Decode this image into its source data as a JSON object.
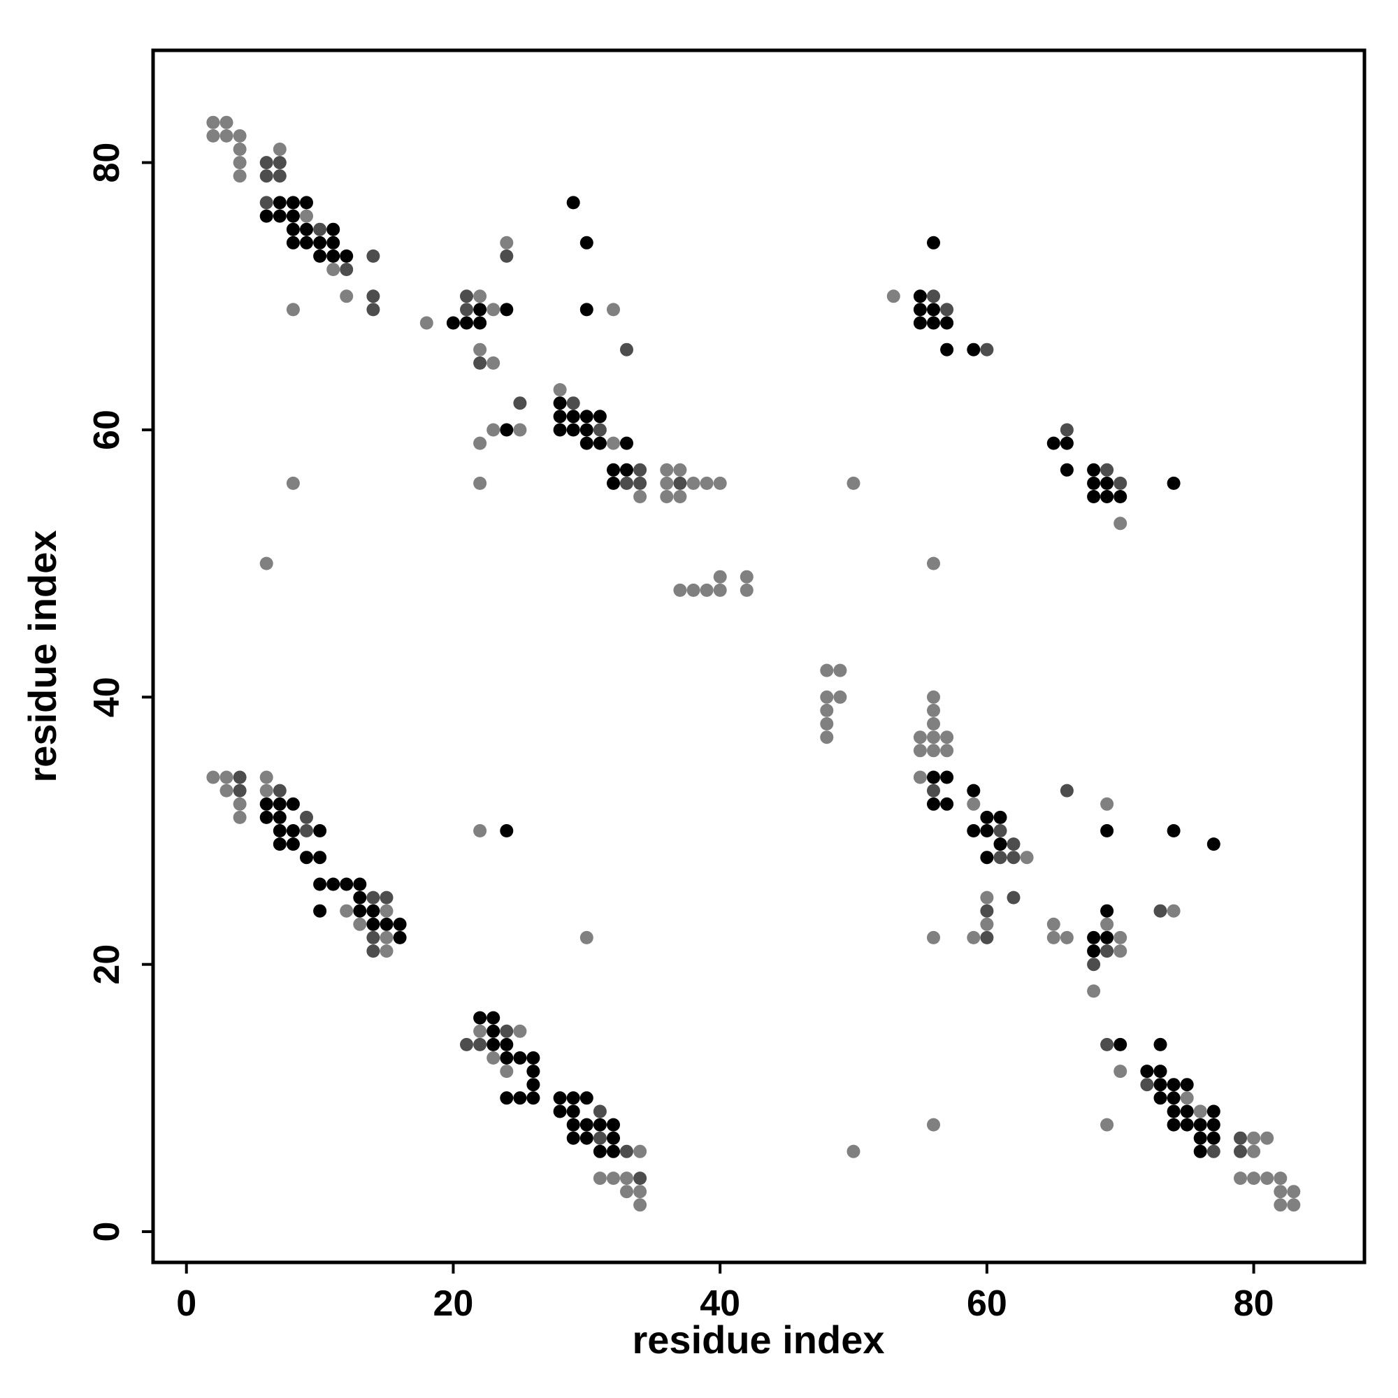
{
  "chart_data": {
    "type": "scatter",
    "title": "",
    "xlabel": "residue index",
    "ylabel": "residue index",
    "xlim": [
      -2.5,
      88.3
    ],
    "ylim": [
      -2.3,
      88.4
    ],
    "xticks": [
      0,
      20,
      40,
      60,
      80
    ],
    "yticks": [
      0,
      20,
      40,
      60,
      80
    ],
    "grid": false,
    "colors": {
      "strong": "#000000",
      "medium": "#4d4d4d",
      "weak": "#808080"
    },
    "series": [
      {
        "level": "strong",
        "points": [
          [
            6,
            76
          ],
          [
            7,
            76
          ],
          [
            8,
            76
          ],
          [
            7,
            77
          ],
          [
            8,
            77
          ],
          [
            9,
            77
          ],
          [
            8,
            75
          ],
          [
            9,
            75
          ],
          [
            8,
            74
          ],
          [
            9,
            74
          ],
          [
            10,
            74
          ],
          [
            11,
            74
          ],
          [
            10,
            73
          ],
          [
            11,
            73
          ],
          [
            12,
            73
          ],
          [
            11,
            75
          ],
          [
            29,
            77
          ],
          [
            30,
            74
          ],
          [
            30,
            69
          ],
          [
            20,
            68
          ],
          [
            21,
            68
          ],
          [
            22,
            68
          ],
          [
            22,
            69
          ],
          [
            24,
            69
          ],
          [
            24,
            60
          ],
          [
            28,
            62
          ],
          [
            28,
            61
          ],
          [
            29,
            61
          ],
          [
            30,
            61
          ],
          [
            31,
            61
          ],
          [
            28,
            60
          ],
          [
            29,
            60
          ],
          [
            30,
            60
          ],
          [
            30,
            59
          ],
          [
            31,
            59
          ],
          [
            33,
            59
          ],
          [
            32,
            57
          ],
          [
            33,
            57
          ],
          [
            32,
            56
          ],
          [
            56,
            74
          ],
          [
            55,
            70
          ],
          [
            55,
            69
          ],
          [
            56,
            69
          ],
          [
            55,
            68
          ],
          [
            56,
            68
          ],
          [
            57,
            68
          ],
          [
            57,
            66
          ],
          [
            59,
            66
          ],
          [
            65,
            59
          ],
          [
            66,
            59
          ],
          [
            66,
            57
          ],
          [
            68,
            57
          ],
          [
            68,
            56
          ],
          [
            69,
            56
          ],
          [
            68,
            55
          ],
          [
            69,
            55
          ],
          [
            70,
            55
          ],
          [
            74,
            56
          ],
          [
            6,
            32
          ],
          [
            7,
            32
          ],
          [
            8,
            32
          ],
          [
            6,
            31
          ],
          [
            7,
            31
          ],
          [
            7,
            30
          ],
          [
            8,
            30
          ],
          [
            10,
            30
          ],
          [
            7,
            29
          ],
          [
            8,
            29
          ],
          [
            9,
            28
          ],
          [
            10,
            28
          ],
          [
            10,
            26
          ],
          [
            11,
            26
          ],
          [
            12,
            26
          ],
          [
            13,
            26
          ],
          [
            13,
            25
          ],
          [
            13,
            24
          ],
          [
            14,
            24
          ],
          [
            10,
            24
          ],
          [
            14,
            23
          ],
          [
            15,
            23
          ],
          [
            16,
            23
          ],
          [
            16,
            22
          ],
          [
            24,
            30
          ],
          [
            22,
            16
          ],
          [
            23,
            16
          ],
          [
            23,
            15
          ],
          [
            23,
            14
          ],
          [
            24,
            14
          ],
          [
            24,
            13
          ],
          [
            25,
            13
          ],
          [
            26,
            13
          ],
          [
            26,
            12
          ],
          [
            26,
            11
          ],
          [
            24,
            10
          ],
          [
            25,
            10
          ],
          [
            26,
            10
          ],
          [
            28,
            10
          ],
          [
            29,
            10
          ],
          [
            30,
            10
          ],
          [
            28,
            9
          ],
          [
            29,
            9
          ],
          [
            29,
            8
          ],
          [
            30,
            8
          ],
          [
            31,
            8
          ],
          [
            32,
            8
          ],
          [
            29,
            7
          ],
          [
            30,
            7
          ],
          [
            32,
            7
          ],
          [
            31,
            6
          ],
          [
            32,
            6
          ],
          [
            56,
            34
          ],
          [
            57,
            34
          ],
          [
            56,
            32
          ],
          [
            57,
            32
          ],
          [
            59,
            33
          ],
          [
            60,
            31
          ],
          [
            61,
            31
          ],
          [
            59,
            30
          ],
          [
            60,
            30
          ],
          [
            61,
            29
          ],
          [
            60,
            28
          ],
          [
            68,
            22
          ],
          [
            69,
            22
          ],
          [
            69,
            24
          ],
          [
            68,
            21
          ],
          [
            69,
            30
          ],
          [
            74,
            30
          ],
          [
            77,
            29
          ],
          [
            70,
            14
          ],
          [
            73,
            14
          ],
          [
            72,
            12
          ],
          [
            73,
            12
          ],
          [
            73,
            11
          ],
          [
            74,
            11
          ],
          [
            75,
            11
          ],
          [
            73,
            10
          ],
          [
            74,
            10
          ],
          [
            74,
            9
          ],
          [
            75,
            9
          ],
          [
            77,
            9
          ],
          [
            74,
            8
          ],
          [
            75,
            8
          ],
          [
            76,
            8
          ],
          [
            77,
            8
          ],
          [
            76,
            7
          ],
          [
            77,
            7
          ],
          [
            76,
            6
          ]
        ]
      },
      {
        "level": "medium",
        "points": [
          [
            6,
            80
          ],
          [
            7,
            80
          ],
          [
            6,
            79
          ],
          [
            7,
            79
          ],
          [
            6,
            77
          ],
          [
            10,
            75
          ],
          [
            12,
            72
          ],
          [
            14,
            73
          ],
          [
            14,
            70
          ],
          [
            14,
            69
          ],
          [
            21,
            70
          ],
          [
            21,
            69
          ],
          [
            22,
            65
          ],
          [
            24,
            73
          ],
          [
            33,
            66
          ],
          [
            25,
            62
          ],
          [
            29,
            62
          ],
          [
            31,
            60
          ],
          [
            34,
            57
          ],
          [
            33,
            56
          ],
          [
            34,
            56
          ],
          [
            37,
            56
          ],
          [
            56,
            70
          ],
          [
            57,
            69
          ],
          [
            60,
            66
          ],
          [
            66,
            60
          ],
          [
            69,
            57
          ],
          [
            70,
            56
          ],
          [
            4,
            34
          ],
          [
            4,
            33
          ],
          [
            7,
            33
          ],
          [
            9,
            31
          ],
          [
            9,
            30
          ],
          [
            15,
            25
          ],
          [
            14,
            25
          ],
          [
            14,
            22
          ],
          [
            14,
            21
          ],
          [
            21,
            14
          ],
          [
            22,
            14
          ],
          [
            24,
            15
          ],
          [
            31,
            9
          ],
          [
            31,
            7
          ],
          [
            33,
            6
          ],
          [
            34,
            4
          ],
          [
            56,
            33
          ],
          [
            61,
            30
          ],
          [
            62,
            29
          ],
          [
            61,
            28
          ],
          [
            62,
            28
          ],
          [
            66,
            33
          ],
          [
            60,
            24
          ],
          [
            62,
            25
          ],
          [
            60,
            22
          ],
          [
            68,
            20
          ],
          [
            69,
            21
          ],
          [
            73,
            24
          ],
          [
            69,
            14
          ],
          [
            72,
            11
          ],
          [
            76,
            9
          ],
          [
            77,
            6
          ],
          [
            79,
            7
          ],
          [
            79,
            6
          ]
        ]
      },
      {
        "level": "weak",
        "points": [
          [
            2,
            83
          ],
          [
            3,
            83
          ],
          [
            2,
            82
          ],
          [
            3,
            82
          ],
          [
            4,
            82
          ],
          [
            4,
            81
          ],
          [
            4,
            80
          ],
          [
            4,
            79
          ],
          [
            7,
            81
          ],
          [
            9,
            76
          ],
          [
            11,
            72
          ],
          [
            12,
            70
          ],
          [
            8,
            69
          ],
          [
            18,
            68
          ],
          [
            22,
            70
          ],
          [
            23,
            69
          ],
          [
            22,
            66
          ],
          [
            23,
            65
          ],
          [
            24,
            74
          ],
          [
            32,
            69
          ],
          [
            28,
            63
          ],
          [
            22,
            59
          ],
          [
            23,
            60
          ],
          [
            25,
            60
          ],
          [
            32,
            59
          ],
          [
            22,
            56
          ],
          [
            8,
            56
          ],
          [
            34,
            55
          ],
          [
            36,
            57
          ],
          [
            37,
            57
          ],
          [
            36,
            56
          ],
          [
            38,
            56
          ],
          [
            39,
            56
          ],
          [
            40,
            56
          ],
          [
            36,
            55
          ],
          [
            37,
            55
          ],
          [
            50,
            56
          ],
          [
            53,
            70
          ],
          [
            70,
            53
          ],
          [
            6,
            50
          ],
          [
            56,
            50
          ],
          [
            37,
            48
          ],
          [
            38,
            48
          ],
          [
            39,
            48
          ],
          [
            40,
            48
          ],
          [
            40,
            49
          ],
          [
            42,
            49
          ],
          [
            42,
            48
          ],
          [
            48,
            42
          ],
          [
            49,
            42
          ],
          [
            48,
            40
          ],
          [
            49,
            40
          ],
          [
            48,
            39
          ],
          [
            48,
            38
          ],
          [
            48,
            37
          ],
          [
            56,
            40
          ],
          [
            56,
            39
          ],
          [
            56,
            38
          ],
          [
            55,
            37
          ],
          [
            56,
            37
          ],
          [
            57,
            37
          ],
          [
            55,
            36
          ],
          [
            56,
            36
          ],
          [
            57,
            36
          ],
          [
            55,
            34
          ],
          [
            59,
            32
          ],
          [
            63,
            28
          ],
          [
            60,
            25
          ],
          [
            60,
            23
          ],
          [
            59,
            22
          ],
          [
            56,
            22
          ],
          [
            2,
            34
          ],
          [
            3,
            34
          ],
          [
            6,
            34
          ],
          [
            3,
            33
          ],
          [
            6,
            33
          ],
          [
            4,
            32
          ],
          [
            4,
            31
          ],
          [
            13,
            23
          ],
          [
            12,
            24
          ],
          [
            15,
            24
          ],
          [
            15,
            22
          ],
          [
            15,
            21
          ],
          [
            22,
            30
          ],
          [
            30,
            22
          ],
          [
            22,
            15
          ],
          [
            25,
            15
          ],
          [
            24,
            12
          ],
          [
            23,
            13
          ],
          [
            31,
            4
          ],
          [
            32,
            4
          ],
          [
            33,
            4
          ],
          [
            33,
            3
          ],
          [
            34,
            3
          ],
          [
            34,
            6
          ],
          [
            34,
            2
          ],
          [
            50,
            6
          ],
          [
            56,
            8
          ],
          [
            65,
            23
          ],
          [
            65,
            22
          ],
          [
            66,
            22
          ],
          [
            69,
            23
          ],
          [
            70,
            22
          ],
          [
            70,
            21
          ],
          [
            69,
            32
          ],
          [
            74,
            24
          ],
          [
            68,
            18
          ],
          [
            70,
            12
          ],
          [
            69,
            8
          ],
          [
            75,
            10
          ],
          [
            76,
            9
          ],
          [
            81,
            7
          ],
          [
            80,
            6
          ],
          [
            80,
            7
          ],
          [
            79,
            4
          ],
          [
            80,
            4
          ],
          [
            81,
            4
          ],
          [
            82,
            4
          ],
          [
            82,
            3
          ],
          [
            83,
            3
          ],
          [
            82,
            2
          ],
          [
            83,
            2
          ]
        ]
      }
    ]
  }
}
